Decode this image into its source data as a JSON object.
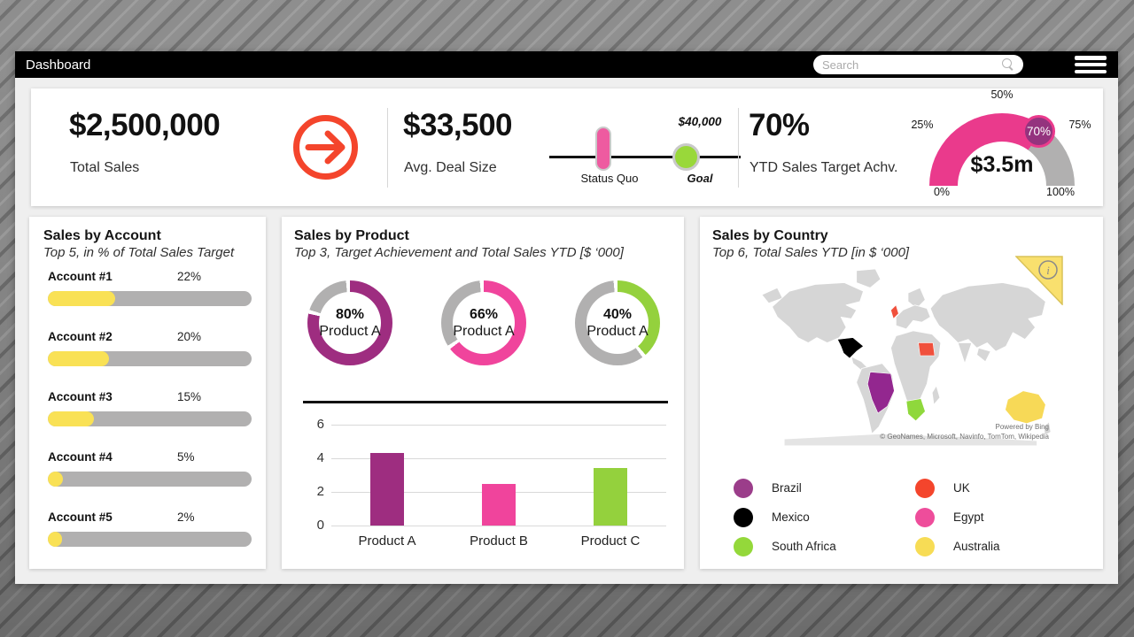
{
  "header": {
    "title": "Dashboard",
    "search_placeholder": "Search"
  },
  "kpis": {
    "total_sales": {
      "value": "$2,500,000",
      "label": "Total Sales"
    },
    "avg_deal": {
      "value": "$33,500",
      "label": "Avg. Deal Size",
      "slider": {
        "status_label": "Status Quo",
        "goal_label": "Goal",
        "goal_value": "$40,000"
      }
    },
    "ytd": {
      "value": "70%",
      "label": "YTD Sales Target Achv."
    }
  },
  "cards": {
    "account": {
      "title": "Sales by Account",
      "subtitle": "Top 5, in % of Total Sales Target"
    },
    "product": {
      "title": "Sales by Product",
      "subtitle": "Top 3, Target Achievement and Total Sales YTD [$ ‘000]"
    },
    "country": {
      "title": "Sales by Country",
      "subtitle": "Top 6, Total Sales YTD [in $ ‘000]"
    }
  },
  "chart_data": [
    {
      "type": "gauge",
      "title": "YTD Sales Target Achv.",
      "value_pct": 70,
      "marker_label": "70%",
      "center_label": "$3.5m",
      "ticks": [
        "0%",
        "25%",
        "50%",
        "75%",
        "100%"
      ],
      "range": [
        0,
        100
      ],
      "colors": {
        "fill": "#ea3a8c",
        "rest": "#b1b0b0",
        "marker": "#94337e"
      }
    },
    {
      "type": "bar",
      "orientation": "horizontal",
      "title": "Sales by Account",
      "categories": [
        "Account #1",
        "Account #2",
        "Account #3",
        "Account #4",
        "Account #5"
      ],
      "values": [
        22,
        20,
        15,
        5,
        2
      ],
      "value_labels": [
        "22%",
        "20%",
        "15%",
        "5%",
        "2%"
      ],
      "unit": "%",
      "bar_color": "#f9e155",
      "track_color": "#b1b0b0"
    },
    {
      "type": "donut-set",
      "title": "Sales by Product",
      "track_color": "#b1b0b0",
      "donuts": [
        {
          "pct": 80,
          "pct_label": "80%",
          "label": "Product A",
          "color": "#9e2d80"
        },
        {
          "pct": 66,
          "pct_label": "66%",
          "label": "Product A",
          "color": "#f0449c"
        },
        {
          "pct": 40,
          "pct_label": "40%",
          "label": "Product A",
          "color": "#94d13d"
        }
      ]
    },
    {
      "type": "bar",
      "title": "Sales by Product - Total Sales YTD",
      "categories": [
        "Product A",
        "Product B",
        "Product C"
      ],
      "values": [
        4.3,
        2.5,
        3.4
      ],
      "ylim": [
        0,
        6
      ],
      "ytick_labels": [
        "6",
        "4",
        "2",
        "0"
      ],
      "grid": true,
      "colors": [
        "#9e2d80",
        "#f0449c",
        "#94d13d"
      ]
    },
    {
      "type": "map",
      "title": "Sales by Country",
      "legend_position": "bottom",
      "legend": [
        {
          "name": "Brazil",
          "legend_color": "#9b3d8a",
          "map_color": "#93278f"
        },
        {
          "name": "Mexico",
          "legend_color": "#000000",
          "map_color": "#000000"
        },
        {
          "name": "South Africa",
          "legend_color": "#94d83a",
          "map_color": "#8fd83c"
        },
        {
          "name": "UK",
          "legend_color": "#f4452c",
          "map_color": "#f0503c"
        },
        {
          "name": "Egypt",
          "legend_color": "#ee4d9b",
          "map_color": "#f0503c"
        },
        {
          "name": "Australia",
          "legend_color": "#f7dc55",
          "map_color": "#f7d957"
        }
      ],
      "attribution_line1": "Powered by Bing",
      "attribution_line2": "© GeoNames, Microsoft, Navinfo, TomTom, Wikipedia",
      "info_icon": "i"
    }
  ],
  "colors": {
    "accent_orange": "#f4452c",
    "pink": "#ea3a8c",
    "purple": "#9e2d80",
    "green": "#94d13d",
    "yellow": "#f9e155",
    "track_gray": "#b1b0b0"
  }
}
